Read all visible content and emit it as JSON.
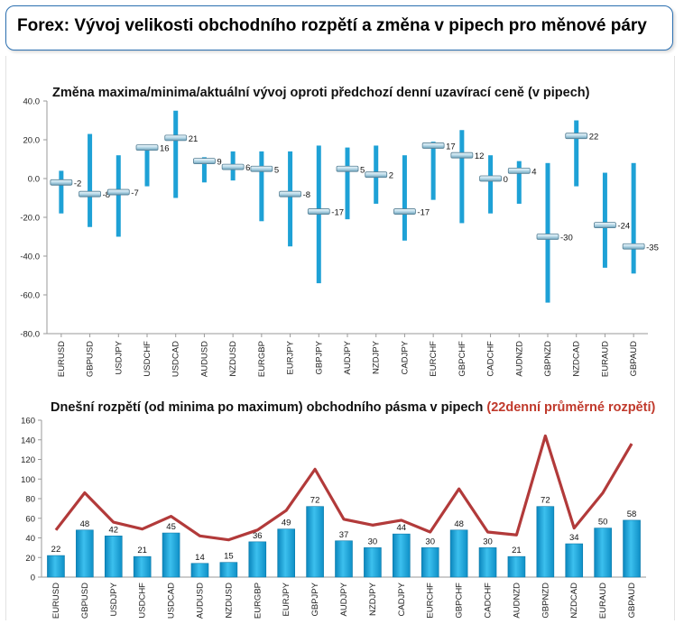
{
  "header": {
    "title": "Forex: Vývoj velikosti obchodního rozpětí a změna v pipech pro měnové páry"
  },
  "colors": {
    "bar_blue": "#1ea1d6",
    "marker": "#b8d9e8",
    "avg_line": "#b23a3a",
    "accent_text": "#c0392b",
    "border": "#2b6fb0"
  },
  "chart_data": [
    {
      "type": "range",
      "title": "Změna maxima/minima/aktuální vývoj oproti předchozí denní uzavírací ceně (v pipech)",
      "categories": [
        "EURUSD",
        "GBPUSD",
        "USDJPY",
        "USDCHF",
        "USDCAD",
        "AUDUSD",
        "NZDUSD",
        "EURGBP",
        "EURJPY",
        "GBPJPY",
        "AUDJPY",
        "NZDJPY",
        "CADJPY",
        "EURCHF",
        "GBPCHF",
        "CADCHF",
        "AUDNZD",
        "GBPNZD",
        "NZDCAD",
        "EURAUD",
        "GBPAUD"
      ],
      "high": [
        4,
        23,
        12,
        17,
        35,
        11,
        14,
        14,
        14,
        17,
        16,
        17,
        12,
        19,
        25,
        12,
        9,
        8,
        30,
        3,
        8
      ],
      "low": [
        -18,
        -25,
        -30,
        -4,
        -10,
        -2,
        -1,
        -22,
        -35,
        -54,
        -21,
        -13,
        -32,
        -11,
        -23,
        -18,
        -13,
        -64,
        -4,
        -46,
        -49
      ],
      "current": [
        -2,
        -8,
        -7,
        16,
        21,
        9,
        6,
        5,
        -8,
        -17,
        5,
        2,
        -17,
        17,
        12,
        0,
        4,
        -30,
        22,
        -24,
        -35
      ],
      "y_ticks": [
        "40.0",
        "20.0",
        "0.0",
        "-20.0",
        "-40.0",
        "-60.0",
        "-80.0"
      ],
      "ylim": [
        -80,
        40
      ]
    },
    {
      "type": "bar",
      "title": "Dnešní rozpětí (od minima po maximum) obchodního pásma v pipech",
      "title_accent": "(22denní průměrné rozpětí)",
      "categories": [
        "EURUSD",
        "GBPUSD",
        "USDJPY",
        "USDCHF",
        "USDCAD",
        "AUDUSD",
        "NZDUSD",
        "EURGBP",
        "EURJPY",
        "GBPJPY",
        "AUDJPY",
        "NZDJPY",
        "CADJPY",
        "EURCHF",
        "GBPCHF",
        "CADCHF",
        "AUDNZD",
        "GBPNZD",
        "NZDCAD",
        "EURAUD",
        "GBPAUD"
      ],
      "values": [
        22,
        48,
        42,
        21,
        45,
        14,
        15,
        36,
        49,
        72,
        37,
        30,
        44,
        30,
        48,
        30,
        21,
        72,
        34,
        50,
        58
      ],
      "average": [
        48,
        86,
        56,
        49,
        62,
        42,
        38,
        48,
        68,
        110,
        59,
        53,
        58,
        46,
        90,
        46,
        43,
        144,
        50,
        86,
        136
      ],
      "y_ticks": [
        "160",
        "140",
        "120",
        "100",
        "80",
        "60",
        "40",
        "20",
        "0"
      ],
      "ylim": [
        0,
        160
      ]
    }
  ]
}
